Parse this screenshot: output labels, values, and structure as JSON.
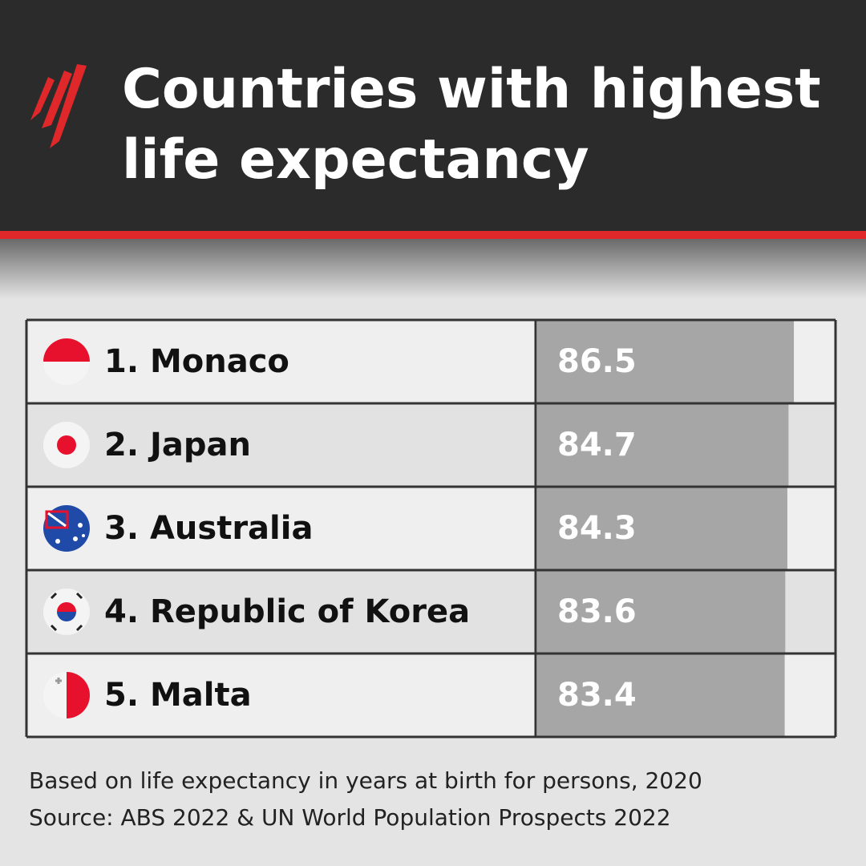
{
  "chart_data": {
    "type": "bar",
    "orientation": "horizontal",
    "title": "Countries with highest life expectancy",
    "categories": [
      "1. Monaco",
      "2. Japan",
      "3. Australia",
      "4. Republic of Korea",
      "5. Malta"
    ],
    "values": [
      86.5,
      84.7,
      84.3,
      83.6,
      83.4
    ],
    "xlim": [
      0,
      100
    ],
    "color": "#a6a6a6",
    "note": "Based on life expectancy in years at birth for persons, 2020",
    "source": "Source: ABS 2022 & UN World Population Prospects 2022"
  }
}
